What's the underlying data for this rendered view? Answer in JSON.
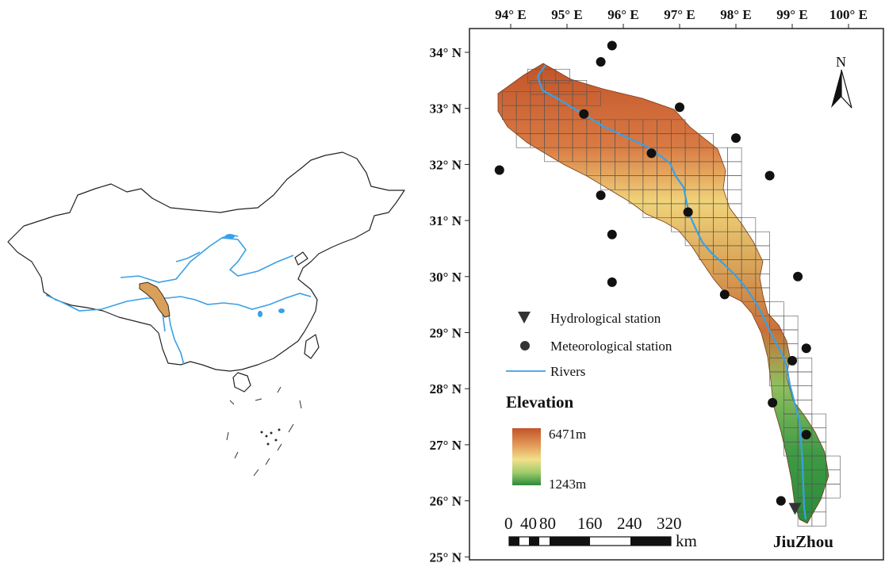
{
  "map": {
    "longitude_ticks": [
      "94° E",
      "95° E",
      "96° E",
      "97° E",
      "98° E",
      "99° E",
      "100° E"
    ],
    "latitude_ticks": [
      "34° N",
      "33° N",
      "32° N",
      "31° N",
      "30° N",
      "29° N",
      "28° N",
      "27° N",
      "26° N",
      "25° N"
    ],
    "north_label": "N",
    "station_name": "JiuZhou"
  },
  "legend": {
    "items": [
      {
        "label": "Hydrological station",
        "symbol": "triangle-down-icon"
      },
      {
        "label": "Meteorological station",
        "symbol": "circle-icon"
      },
      {
        "label": "Rivers",
        "symbol": "line-icon"
      }
    ],
    "elevation_title": "Elevation",
    "elevation_max": "6471m",
    "elevation_min": "1243m"
  },
  "scale_bar": {
    "labels": [
      "0",
      "40",
      "80",
      "160",
      "240",
      "320"
    ],
    "unit": "km"
  },
  "colors": {
    "river": "#3aa0e6",
    "elev_high": "#c2542a",
    "elev_mid": "#f2e08a",
    "elev_low": "#2d8a3a",
    "basin_inset": "#d9a05b"
  },
  "meteorological_stations": [
    {
      "lon": 95.8,
      "lat": 34.12
    },
    {
      "lon": 95.6,
      "lat": 33.83
    },
    {
      "lon": 95.3,
      "lat": 32.9
    },
    {
      "lon": 97.0,
      "lat": 33.02
    },
    {
      "lon": 96.5,
      "lat": 32.2
    },
    {
      "lon": 98.0,
      "lat": 32.47
    },
    {
      "lon": 93.8,
      "lat": 31.9
    },
    {
      "lon": 95.6,
      "lat": 31.45
    },
    {
      "lon": 97.15,
      "lat": 31.15
    },
    {
      "lon": 98.6,
      "lat": 31.8
    },
    {
      "lon": 95.8,
      "lat": 30.75
    },
    {
      "lon": 95.8,
      "lat": 29.9
    },
    {
      "lon": 97.8,
      "lat": 29.68
    },
    {
      "lon": 99.1,
      "lat": 30.0
    },
    {
      "lon": 99.25,
      "lat": 28.72
    },
    {
      "lon": 99.0,
      "lat": 28.5
    },
    {
      "lon": 98.65,
      "lat": 27.75
    },
    {
      "lon": 99.25,
      "lat": 27.18
    },
    {
      "lon": 98.8,
      "lat": 26.0
    }
  ],
  "hydrological_station": {
    "lon": 99.05,
    "lat": 25.85
  }
}
